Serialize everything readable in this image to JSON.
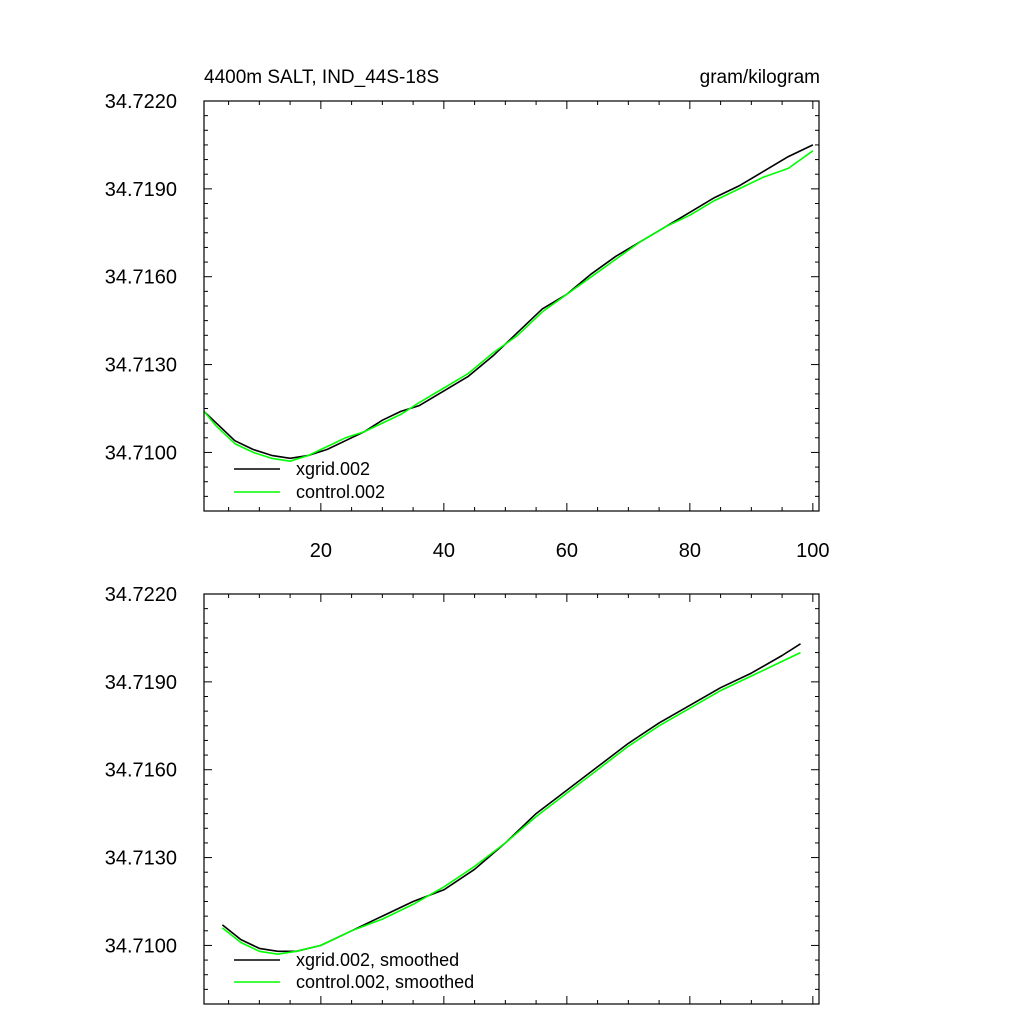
{
  "chart_data": [
    {
      "type": "line",
      "title": "4400m SALT, IND_44S-18S",
      "units": "gram/kilogram",
      "xlabel": "",
      "ylabel": "",
      "xlim": [
        1,
        101
      ],
      "ylim": [
        34.708,
        34.722
      ],
      "xticks": [
        20,
        40,
        60,
        80,
        100
      ],
      "xtick_labels": [
        "20",
        "40",
        "60",
        "80",
        "100"
      ],
      "yticks": [
        34.71,
        34.713,
        34.716,
        34.719,
        34.722
      ],
      "ytick_labels": [
        "34.7100",
        "34.7130",
        "34.7160",
        "34.7190",
        "34.7220"
      ],
      "legend_position": "bottom-left",
      "series": [
        {
          "name": "xgrid.002",
          "color": "#000000",
          "x": [
            1,
            3,
            6,
            9,
            12,
            15,
            18,
            21,
            24,
            27,
            30,
            33,
            36,
            40,
            44,
            48,
            52,
            56,
            60,
            64,
            68,
            72,
            76,
            80,
            84,
            88,
            92,
            96,
            100
          ],
          "y": [
            34.7114,
            34.711,
            34.7104,
            34.7101,
            34.7099,
            34.7098,
            34.7099,
            34.7101,
            34.7104,
            34.7107,
            34.7111,
            34.7114,
            34.7116,
            34.7121,
            34.7126,
            34.7133,
            34.7141,
            34.7149,
            34.7154,
            34.7161,
            34.7167,
            34.7172,
            34.7177,
            34.7182,
            34.7187,
            34.7191,
            34.7196,
            34.7201,
            34.7205
          ]
        },
        {
          "name": "control.002",
          "color": "#00ff00",
          "x": [
            1,
            3,
            6,
            9,
            12,
            15,
            18,
            21,
            24,
            27,
            30,
            33,
            36,
            40,
            44,
            48,
            52,
            56,
            60,
            64,
            68,
            72,
            76,
            80,
            84,
            88,
            92,
            96,
            100
          ],
          "y": [
            34.7114,
            34.7109,
            34.7103,
            34.71,
            34.7098,
            34.7097,
            34.7099,
            34.7102,
            34.7105,
            34.7107,
            34.711,
            34.7113,
            34.7117,
            34.7122,
            34.7127,
            34.7134,
            34.714,
            34.7148,
            34.7154,
            34.716,
            34.7166,
            34.7172,
            34.7177,
            34.7181,
            34.7186,
            34.719,
            34.7194,
            34.7197,
            34.7203
          ]
        }
      ]
    },
    {
      "type": "line",
      "title": "",
      "xlabel": "",
      "ylabel": "",
      "xlim": [
        1,
        101
      ],
      "ylim": [
        34.708,
        34.722
      ],
      "yticks": [
        34.71,
        34.713,
        34.716,
        34.719,
        34.722
      ],
      "ytick_labels": [
        "34.7100",
        "34.7130",
        "34.7160",
        "34.7190",
        "34.7220"
      ],
      "legend_position": "bottom-left",
      "series": [
        {
          "name": "xgrid.002, smoothed",
          "color": "#000000",
          "x": [
            4,
            7,
            10,
            13,
            16,
            20,
            25,
            30,
            35,
            40,
            45,
            50,
            55,
            60,
            65,
            70,
            75,
            80,
            85,
            90,
            95,
            98
          ],
          "y": [
            34.7107,
            34.7102,
            34.7099,
            34.7098,
            34.7098,
            34.71,
            34.7105,
            34.711,
            34.7115,
            34.7119,
            34.7126,
            34.7135,
            34.7145,
            34.7153,
            34.7161,
            34.7169,
            34.7176,
            34.7182,
            34.7188,
            34.7193,
            34.7199,
            34.7203
          ]
        },
        {
          "name": "control.002, smoothed",
          "color": "#00ff00",
          "x": [
            4,
            7,
            10,
            13,
            16,
            20,
            25,
            30,
            35,
            40,
            45,
            50,
            55,
            60,
            65,
            70,
            75,
            80,
            85,
            90,
            95,
            98
          ],
          "y": [
            34.7106,
            34.7101,
            34.7098,
            34.7097,
            34.7098,
            34.71,
            34.7105,
            34.7109,
            34.7114,
            34.712,
            34.7127,
            34.7135,
            34.7144,
            34.7152,
            34.716,
            34.7168,
            34.7175,
            34.7181,
            34.7187,
            34.7192,
            34.7197,
            34.72
          ]
        }
      ]
    }
  ]
}
